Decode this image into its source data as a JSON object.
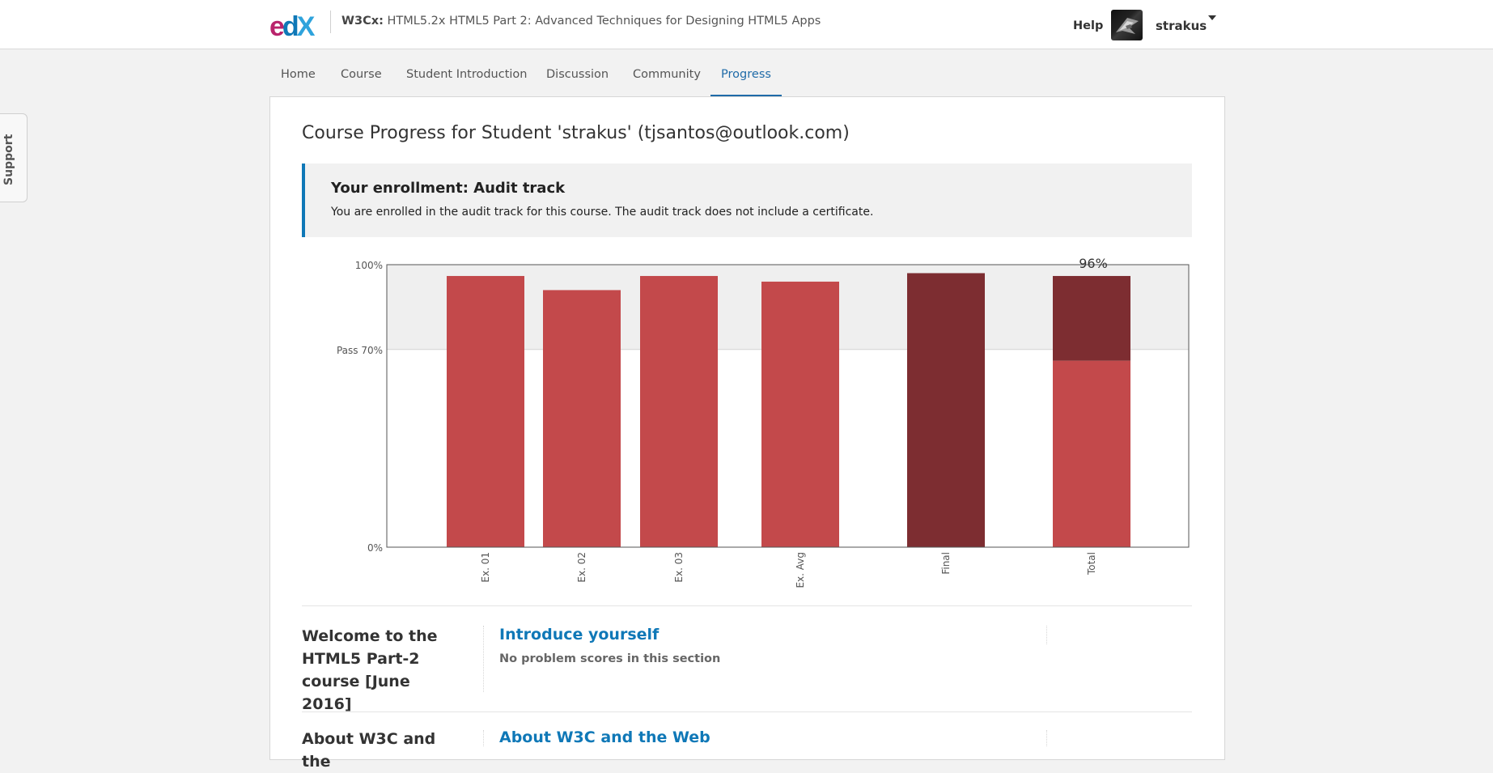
{
  "header": {
    "course_org": "W3Cx:",
    "course_name": "HTML5.2x HTML5 Part 2: Advanced Techniques for Designing HTML5 Apps",
    "help_label": "Help",
    "username": "strakus"
  },
  "support_label": "Support",
  "nav": {
    "tabs": [
      {
        "label": "Home"
      },
      {
        "label": "Course"
      },
      {
        "label": "Student Introduction"
      },
      {
        "label": "Discussion"
      },
      {
        "label": "Community"
      },
      {
        "label": "Progress",
        "active": true
      }
    ]
  },
  "page_title": "Course Progress for Student 'strakus' (tjsantos@outlook.com)",
  "enrollment": {
    "heading": "Your enrollment: Audit track",
    "text": "You are enrolled in the audit track for this course. The audit track does not include a certificate."
  },
  "chart_data": {
    "type": "bar",
    "categories": [
      "Ex. 01",
      "Ex. 02",
      "Ex. 03",
      "Ex. Avg",
      "Final",
      "Total"
    ],
    "values": [
      96,
      91,
      96,
      94,
      97,
      96
    ],
    "total_breakdown": {
      "exercises": 66,
      "final": 30
    },
    "total_label": "96%",
    "y_ticks": [
      "100%",
      "Pass 70%",
      "0%"
    ],
    "pass_threshold": 70,
    "ylim": [
      0,
      100
    ],
    "colors": {
      "exercise": "#c3494b",
      "final": "#7d2d31",
      "pass_band": "#efefef",
      "frame": "#555555"
    }
  },
  "sections": [
    {
      "chapter": "Welcome to the HTML5 Part-2 course [June 2016]",
      "link": "Introduce yourself",
      "note": "No problem scores in this section"
    },
    {
      "chapter": "About W3C and the",
      "link": "About W3C and the Web",
      "note": ""
    }
  ]
}
